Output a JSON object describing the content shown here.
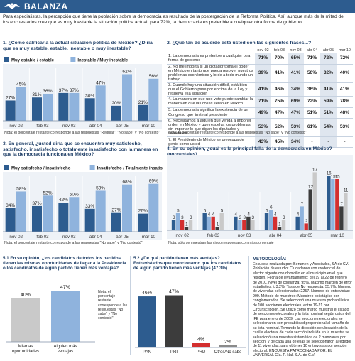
{
  "header": {
    "title": "BALANZA",
    "intro": "Para especialistas, la percepción que tiene la población sobre la democracia es resultado de la postergación de la Reforma Política. Así, aunque más de la mitad de los encuestados cree que es muy inestable la situación política actual, para 72%, la democracia es preferible a cualquier otra forma de gobierno"
  },
  "colors": {
    "dark": "#2d5c8f",
    "light": "#8fb3dd",
    "red": "#d32f2f",
    "darkgrey": "#3c3c3c",
    "grey": "#8a8a8a",
    "lightgrey": "#c9c9c9",
    "header": "#2d5c8f"
  },
  "q1": {
    "title": "1. ¿Cómo calificaría la actual situación política de México? ¿Diría que es muy estable, estable, inestable o muy inestable?",
    "note": "Nota: el porcentaje restante corresponde a las respuestas \"Regular\", \"No sabe\" y \"No contestó\"",
    "chart_data": {
      "type": "bar",
      "categories": [
        "nov 02",
        "feb 03",
        "nov 03",
        "abr 04",
        "abr 05",
        "mar 10"
      ],
      "series": [
        {
          "name": "Muy estable / estable",
          "values": [
            27,
            31,
            37,
            30,
            20,
            21
          ]
        },
        {
          "name": "Inestable / Muy inestable",
          "values": [
            45,
            36,
            37,
            47,
            62,
            56
          ]
        }
      ],
      "ylim": [
        0,
        70
      ]
    }
  },
  "q2": {
    "title": "2. ¿Qué tan de acuerdo está usted con las siguientes frases...?",
    "note": "Nota: el porcentaje restante corresponde a las respuestas \"No sabe\" y \"No contestó\"",
    "chart_data": {
      "type": "table",
      "columns": [
        "nov 02",
        "feb 03",
        "nov 03",
        "abr 04",
        "abr 05",
        "mar 10"
      ],
      "rows": [
        {
          "label": "1. La democracia es preferible a cualquier otra forma de gobierno",
          "values": [
            "71%",
            "70%",
            "65%",
            "71%",
            "72%",
            "72%"
          ]
        },
        {
          "label": "2. No me importa si un dictador toma el poder en México en tanto que pueda resolver nuestros problemas económicos y lo de a todo mundo un trabajo",
          "values": [
            "39%",
            "41%",
            "41%",
            "50%",
            "32%",
            "40%"
          ]
        },
        {
          "label": "3. Cuando hay una situación difícil, está bien que el Gobierno pase por encima de la Ley y resuelva esa situación",
          "values": [
            "41%",
            "46%",
            "34%",
            "36%",
            "41%",
            "41%"
          ]
        },
        {
          "label": "4. La manera en que uno vote puede cambiar la manera en que las cosas serán en México",
          "values": [
            "71%",
            "75%",
            "69%",
            "72%",
            "59%",
            "78%"
          ]
        },
        {
          "label": "5. La democracia significa la existencia de un Congreso que limite al presidente",
          "values": [
            "49%",
            "47%",
            "47%",
            "51%",
            "51%",
            "48%"
          ]
        },
        {
          "label": "6. Necesitamos a alguien que venga a imponer orden en México y que resuelva los problemas sin importar lo que digan los diputados y senadores",
          "values": [
            "53%",
            "52%",
            "53%",
            "61%",
            "54%",
            "53%"
          ]
        },
        {
          "label": "7. El Presidente de México se preocupa de gente como usted",
          "values": [
            "43%",
            "45%",
            "34%",
            "-",
            "-",
            "-"
          ]
        }
      ]
    }
  },
  "q3": {
    "title": "3. En general, ¿usted diría que se encuentra muy satisfecho, satisfecho, insatisfecho o totalmente insatisfecho con la manera en que la democracia funciona en México?",
    "note": "Nota: el porcentaje restante corresponde a las respuestas \"No sabe\" y \"No contestó\"",
    "chart_data": {
      "type": "bar",
      "categories": [
        "nov 02",
        "feb 03",
        "nov 03",
        "abr 04",
        "abr 05",
        "mar 10"
      ],
      "series": [
        {
          "name": "Muy satisfecho / insatisfecho",
          "values": [
            34,
            37,
            42,
            33,
            27,
            26
          ]
        },
        {
          "name": "Insatisfecho / Totalmente insatisfecho",
          "values": [
            58,
            52,
            50,
            59,
            68,
            69
          ]
        }
      ],
      "ylim": [
        0,
        80
      ]
    }
  },
  "q4": {
    "title": "4. En su opinión, ¿cuál es la principal falla de la democracia en México? (porcentajes)",
    "note": "Nota: sólo se muestran las cinco respuestas con más porcentaje",
    "chart_data": {
      "type": "bar",
      "categories": [
        "nov 02",
        "feb 03",
        "nov 03",
        "abr 04",
        "abr 05",
        "mar 10"
      ],
      "series": [
        {
          "name": "Abuso de poder",
          "values": [
            3,
            5,
            4,
            5,
            4,
            16
          ]
        },
        {
          "name": "Corrupción",
          "values": [
            5,
            4,
            3,
            6,
            7,
            15
          ]
        },
        {
          "name": "No cumplen promesas de campaña",
          "values": [
            3,
            4,
            3,
            4,
            2,
            15
          ]
        },
        {
          "name": "Los partidos/ problemas entre partidos",
          "values": [
            1,
            1,
            4,
            1,
            12,
            7
          ]
        },
        {
          "name": "No hay democracia",
          "values": [
            3,
            5,
            3,
            3,
            17,
            11
          ]
        }
      ],
      "ylim": [
        0,
        20
      ]
    }
  },
  "q51": {
    "title": "5.1 En su opinión, ¿los candidatos de todos los partidos tienen las mismas oportunidades de llegar a la Presidencia o los candidatos de algún partido tienen más ventajas?",
    "note": "Nota: el porcentaje restante corresponde a las respuestas \"No sabe\" y \"No contestó\"",
    "chart_data": {
      "type": "bar",
      "categories": [
        "Mismas oportunidades",
        "Alguien más ventajas"
      ],
      "values": [
        40,
        47
      ],
      "ylim": [
        0,
        55
      ]
    }
  },
  "q52": {
    "title": "5.2 ¿De qué partido tienen más ventajas? Entrevistados que mencionaron que los candidatos de algún partido tienen más ventajas (47.3%)",
    "chart_data": {
      "type": "bar",
      "categories": [
        "PAN",
        "PRI",
        "PRD",
        "Otros/No sabe"
      ],
      "values": [
        46,
        47,
        4,
        2
      ],
      "ylim": [
        0,
        55
      ]
    }
  },
  "methodology": {
    "title": "METODOLOGÍA:",
    "text": "Encuesta realizada por: Berumen y Asociados, SA de CV. Población de estudio: Ciudadanos con credencial de elector vigente con domicilio en el municipio en el que residen. Fecha de levantamiento: del 19 al 22 de febrero de 2010. Nivel de confianza: 95%. Máximo margen de error estadístico: ± 3.2%. Tasa de No respuesta: 55.7%. Número de viviendas seleccionadas: 2257. Número de entrevistas: 999. Método de muestreo: Muestreo polietápico por conglomerados. Se seleccionó una muestra probabilística de 100 secciones electorales, entre 19-21 por Circunscripción. Se utilizó como marco muestral el listado de secciones electorales y la lista nominal según datos del IFE para enero de 2009. Las secciones electorales se seleccionaron con probabilidad proporcional al tamaño de su lista nominal. Tomando la dirección de ubicación de la casilla electoral de cada sección incluida en la muestra se seleccionó una muestra sistemática de 2 manzanas por sección, y de cada una de ellas se seleccionaron alrededor de 11 viviendas, para obtener 10 entrevistas por sección electoral. ENCUESTA PATROCINADA POR: EL UNIVERSAL Cía. P. Nal. S.A. de C.V."
  }
}
